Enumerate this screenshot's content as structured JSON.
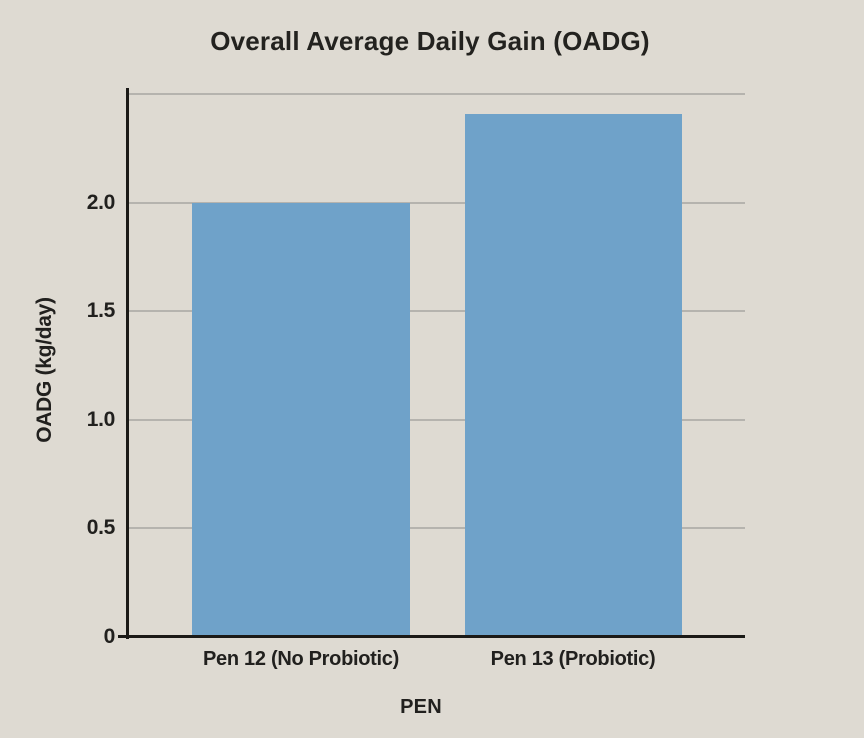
{
  "chart_data": {
    "type": "bar",
    "title": "Overall Average Daily Gain (OADG)",
    "xlabel": "PEN",
    "ylabel": "OADG (kg/day)",
    "categories": [
      "Pen 12 (No Probiotic)",
      "Pen 13 (Probiotic)"
    ],
    "values": [
      2.0,
      2.41
    ],
    "ylim": [
      0,
      2.53
    ],
    "yticks": [
      0,
      0.5,
      1.0,
      1.5,
      2.0
    ],
    "ytick_labels": [
      "0",
      "0.5",
      "1.0",
      "1.5",
      "2.0"
    ],
    "gridline_values": [
      0.5,
      1.0,
      1.5,
      2.0,
      2.5
    ],
    "grid": true,
    "legend_position": "none",
    "colors": {
      "bar": "#6fa2c9",
      "background": "#dedad2",
      "gridline": "#b5b3ae",
      "axis": "#1b1a17",
      "text": "#21201e"
    }
  }
}
